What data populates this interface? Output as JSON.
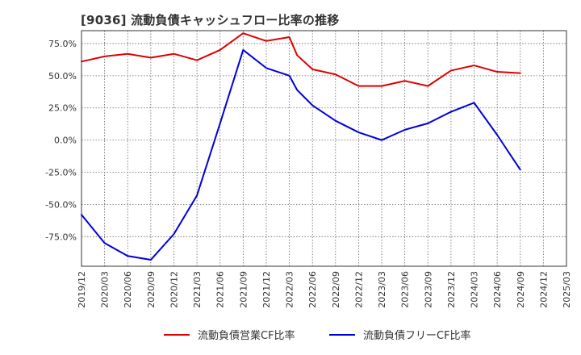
{
  "chart_data": {
    "type": "line",
    "title": "[9036]  流動負債キャッシュフロー比率の推移",
    "xlabel": "",
    "ylabel": "",
    "x": [
      "2019/12",
      "2020/03",
      "2020/06",
      "2020/09",
      "2020/12",
      "2021/03",
      "2021/06",
      "2021/09",
      "2021/12",
      "2022/03",
      "2022/04",
      "2022/06",
      "2022/09",
      "2022/12",
      "2023/03",
      "2023/06",
      "2023/09",
      "2023/12",
      "2024/03",
      "2024/06",
      "2024/09"
    ],
    "x_ticks": [
      "2019/12",
      "2020/03",
      "2020/06",
      "2020/09",
      "2020/12",
      "2021/03",
      "2021/06",
      "2021/09",
      "2021/12",
      "2022/03",
      "2022/06",
      "2022/09",
      "2022/12",
      "2023/03",
      "2023/06",
      "2023/09",
      "2023/12",
      "2024/03",
      "2024/06",
      "2024/09",
      "2024/12",
      "2025/03"
    ],
    "y_ticks": [
      75,
      50,
      25,
      0,
      -25,
      -50,
      -75
    ],
    "y_tick_labels": [
      "75.0%",
      "50.0%",
      "25.0%",
      "0.0%",
      "-25.0%",
      "-50.0%",
      "-75.0%"
    ],
    "ylim": [
      -98,
      85
    ],
    "grid": true,
    "legend_position": "bottom",
    "series": [
      {
        "name": "流動負債営業CF比率",
        "color": "#e00000",
        "points": [
          [
            "2019/12",
            61
          ],
          [
            "2020/03",
            65
          ],
          [
            "2020/06",
            67
          ],
          [
            "2020/09",
            64
          ],
          [
            "2020/12",
            67
          ],
          [
            "2021/03",
            62
          ],
          [
            "2021/06",
            70
          ],
          [
            "2021/09",
            83
          ],
          [
            "2021/12",
            77
          ],
          [
            "2022/03",
            80
          ],
          [
            "2022/04",
            66
          ],
          [
            "2022/06",
            55
          ],
          [
            "2022/09",
            51
          ],
          [
            "2022/12",
            42
          ],
          [
            "2023/03",
            42
          ],
          [
            "2023/06",
            46
          ],
          [
            "2023/09",
            42
          ],
          [
            "2023/12",
            54
          ],
          [
            "2024/03",
            58
          ],
          [
            "2024/06",
            53
          ],
          [
            "2024/09",
            52
          ]
        ]
      },
      {
        "name": "流動負債フリーCF比率",
        "color": "#0000dd",
        "points": [
          [
            "2019/12",
            -58
          ],
          [
            "2020/03",
            -80
          ],
          [
            "2020/06",
            -90
          ],
          [
            "2020/09",
            -93
          ],
          [
            "2020/12",
            -73
          ],
          [
            "2021/03",
            -43
          ],
          [
            "2021/06",
            13
          ],
          [
            "2021/09",
            70
          ],
          [
            "2021/12",
            56
          ],
          [
            "2022/03",
            50
          ],
          [
            "2022/04",
            39
          ],
          [
            "2022/06",
            27
          ],
          [
            "2022/09",
            15
          ],
          [
            "2022/12",
            6
          ],
          [
            "2023/03",
            0
          ],
          [
            "2023/06",
            8
          ],
          [
            "2023/09",
            13
          ],
          [
            "2023/12",
            22
          ],
          [
            "2024/03",
            29
          ],
          [
            "2024/06",
            4
          ],
          [
            "2024/09",
            -23
          ]
        ]
      }
    ]
  }
}
